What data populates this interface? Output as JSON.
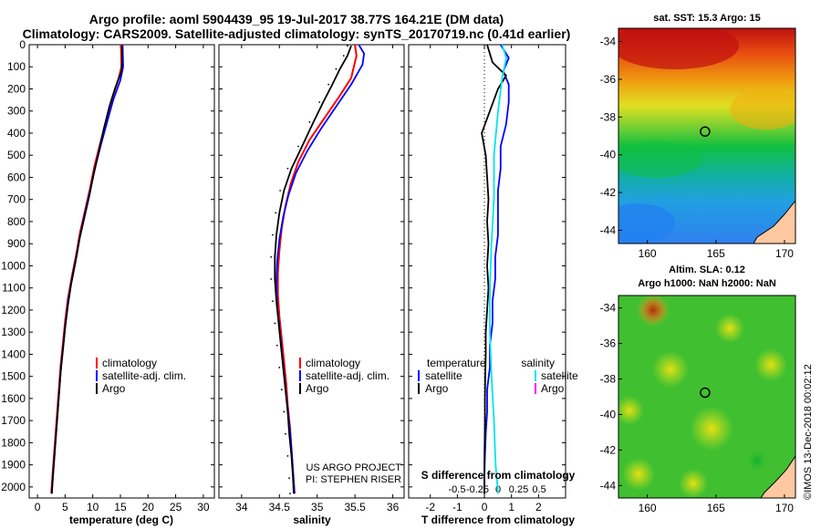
{
  "title_line1": "Argo profile: aoml 5904439_95 19-Jul-2017 38.77S 164.21E (DM data)",
  "title_line2": "Climatology: CARS2009. Satellite-adjusted climatology: synTS_20170719.nc (0.41d earlier)",
  "map1_title": "sat. SST: 15.3 Argo: 15",
  "map2_title_line1": "Altim. SLA: 0.12",
  "map2_title_line2": "Argo h1000: NaN h2000: NaN",
  "watermark": "©IMOS 13-Dec-2018 00:02:12",
  "credit_line1": "US ARGO PROJECT",
  "credit_line2": "PI: STEPHEN RISER",
  "colors": {
    "climatology": "#ff0000",
    "satellite": "#0000ff",
    "argo": "#000000",
    "s_satellite": "#00e5ee",
    "s_argo": "#ff00ff"
  },
  "chart_data": [
    {
      "type": "line",
      "name": "temperature-profile",
      "xlabel": "temperature (deg C)",
      "xlim": [
        -1.5,
        32
      ],
      "xticks": [
        0,
        5,
        10,
        15,
        20,
        25,
        30
      ],
      "ylim": [
        2050,
        0
      ],
      "yticks": [
        0,
        100,
        200,
        300,
        400,
        500,
        600,
        700,
        800,
        900,
        1000,
        1100,
        1200,
        1300,
        1400,
        1500,
        1600,
        1700,
        1800,
        1900,
        2000
      ],
      "legend": [
        "climatology",
        "satellite-adj. clim.",
        "Argo"
      ],
      "legend_position": "lower-right",
      "series": [
        {
          "name": "climatology",
          "points": [
            [
              15.1,
              0
            ],
            [
              15.2,
              100
            ],
            [
              14.7,
              150
            ],
            [
              13.4,
              250
            ],
            [
              12.4,
              350
            ],
            [
              11.3,
              450
            ],
            [
              10.3,
              550
            ],
            [
              9.5,
              650
            ],
            [
              8.6,
              750
            ],
            [
              7.7,
              850
            ],
            [
              7.0,
              950
            ],
            [
              6.2,
              1050
            ],
            [
              5.5,
              1150
            ],
            [
              5.0,
              1250
            ],
            [
              4.6,
              1350
            ],
            [
              4.2,
              1450
            ],
            [
              3.9,
              1550
            ],
            [
              3.6,
              1650
            ],
            [
              3.3,
              1750
            ],
            [
              3.0,
              1850
            ],
            [
              2.7,
              1950
            ],
            [
              2.5,
              2030
            ]
          ]
        },
        {
          "name": "satellite-adj. clim.",
          "points": [
            [
              15.4,
              0
            ],
            [
              15.5,
              100
            ],
            [
              15.0,
              160
            ],
            [
              13.7,
              250
            ],
            [
              12.6,
              350
            ],
            [
              11.5,
              450
            ],
            [
              10.5,
              550
            ],
            [
              9.6,
              650
            ],
            [
              8.7,
              750
            ],
            [
              7.8,
              850
            ],
            [
              7.1,
              950
            ],
            [
              6.3,
              1050
            ],
            [
              5.6,
              1150
            ],
            [
              5.1,
              1250
            ],
            [
              4.7,
              1350
            ],
            [
              4.3,
              1450
            ],
            [
              4.0,
              1550
            ],
            [
              3.7,
              1650
            ],
            [
              3.4,
              1750
            ],
            [
              3.1,
              1850
            ],
            [
              2.8,
              1950
            ],
            [
              2.6,
              2030
            ]
          ]
        },
        {
          "name": "Argo",
          "points": [
            [
              15.3,
              5
            ],
            [
              15.3,
              60
            ],
            [
              15.2,
              120
            ],
            [
              14.0,
              200
            ],
            [
              13.0,
              280
            ],
            [
              12.0,
              380
            ],
            [
              11.1,
              480
            ],
            [
              10.2,
              580
            ],
            [
              9.4,
              680
            ],
            [
              8.5,
              780
            ],
            [
              7.6,
              880
            ],
            [
              6.9,
              980
            ],
            [
              6.1,
              1080
            ],
            [
              5.5,
              1180
            ],
            [
              5.0,
              1280
            ],
            [
              4.6,
              1380
            ],
            [
              4.2,
              1480
            ],
            [
              3.9,
              1580
            ],
            [
              3.6,
              1680
            ],
            [
              3.3,
              1780
            ],
            [
              3.0,
              1880
            ],
            [
              2.7,
              1980
            ],
            [
              2.6,
              2030
            ]
          ]
        }
      ]
    },
    {
      "type": "line",
      "name": "salinity-profile",
      "xlabel": "salinity",
      "xlim": [
        33.7,
        36.15
      ],
      "xticks": [
        34,
        34.5,
        35,
        35.5,
        36
      ],
      "ylim": [
        2050,
        0
      ],
      "legend": [
        "climatology",
        "satellite-adj. clim.",
        "Argo"
      ],
      "legend_position": "lower-right",
      "series": [
        {
          "name": "climatology",
          "points": [
            [
              35.5,
              0
            ],
            [
              35.52,
              50
            ],
            [
              35.45,
              150
            ],
            [
              35.3,
              230
            ],
            [
              35.1,
              330
            ],
            [
              34.9,
              430
            ],
            [
              34.75,
              530
            ],
            [
              34.65,
              630
            ],
            [
              34.58,
              730
            ],
            [
              34.53,
              830
            ],
            [
              34.5,
              930
            ],
            [
              34.48,
              1030
            ],
            [
              34.48,
              1130
            ],
            [
              34.5,
              1230
            ],
            [
              34.53,
              1330
            ],
            [
              34.56,
              1430
            ],
            [
              34.59,
              1530
            ],
            [
              34.61,
              1630
            ],
            [
              34.64,
              1730
            ],
            [
              34.66,
              1830
            ],
            [
              34.68,
              1930
            ],
            [
              34.7,
              2030
            ]
          ]
        },
        {
          "name": "satellite-adj. clim.",
          "points": [
            [
              35.55,
              0
            ],
            [
              35.62,
              40
            ],
            [
              35.6,
              90
            ],
            [
              35.45,
              180
            ],
            [
              35.25,
              280
            ],
            [
              35.05,
              380
            ],
            [
              34.87,
              480
            ],
            [
              34.72,
              580
            ],
            [
              34.62,
              680
            ],
            [
              34.55,
              780
            ],
            [
              34.5,
              880
            ],
            [
              34.47,
              980
            ],
            [
              34.46,
              1080
            ],
            [
              34.47,
              1180
            ],
            [
              34.5,
              1280
            ],
            [
              34.53,
              1380
            ],
            [
              34.56,
              1480
            ],
            [
              34.59,
              1580
            ],
            [
              34.62,
              1680
            ],
            [
              34.65,
              1780
            ],
            [
              34.67,
              1880
            ],
            [
              34.69,
              1980
            ],
            [
              34.7,
              2030
            ]
          ]
        },
        {
          "name": "Argo",
          "points": [
            [
              35.45,
              5
            ],
            [
              35.4,
              50
            ],
            [
              35.3,
              110
            ],
            [
              35.2,
              180
            ],
            [
              35.08,
              260
            ],
            [
              34.95,
              350
            ],
            [
              34.8,
              460
            ],
            [
              34.66,
              560
            ],
            [
              34.56,
              660
            ],
            [
              34.5,
              760
            ],
            [
              34.46,
              860
            ],
            [
              34.44,
              960
            ],
            [
              34.44,
              1060
            ],
            [
              34.46,
              1160
            ],
            [
              34.49,
              1260
            ],
            [
              34.52,
              1360
            ],
            [
              34.55,
              1460
            ],
            [
              34.58,
              1560
            ],
            [
              34.61,
              1660
            ],
            [
              34.63,
              1760
            ],
            [
              34.66,
              1860
            ],
            [
              34.68,
              1960
            ],
            [
              34.69,
              2030
            ]
          ]
        }
      ]
    },
    {
      "type": "line",
      "name": "difference-profile",
      "xlabel": "T difference from climatology",
      "xlabel2": "S difference from climatology",
      "xlim": [
        -2.8,
        3.0
      ],
      "xticks": [
        -2,
        -1,
        0,
        1,
        2
      ],
      "xticks_S": [
        -0.5,
        -0.25,
        0,
        0.25,
        0.5
      ],
      "xtick_labels_S": [
        "-0.5",
        "-0.25",
        "0",
        "0.25",
        "0.5"
      ],
      "ylim": [
        2050,
        0
      ],
      "legend_T_title": "temperature",
      "legend_S_title": "salinity",
      "legend_T": [
        "satellite",
        "Argo"
      ],
      "legend_S": [
        "satellite",
        "Argo"
      ],
      "series": [
        {
          "name": "T satellite",
          "points": [
            [
              0.6,
              0
            ],
            [
              0.9,
              60
            ],
            [
              0.7,
              120
            ],
            [
              0.9,
              180
            ],
            [
              0.9,
              260
            ],
            [
              0.8,
              360
            ],
            [
              0.6,
              460
            ],
            [
              0.6,
              560
            ],
            [
              0.5,
              660
            ],
            [
              0.5,
              760
            ],
            [
              0.5,
              860
            ],
            [
              0.4,
              960
            ],
            [
              0.4,
              1060
            ],
            [
              0.3,
              1160
            ],
            [
              0.3,
              1260
            ],
            [
              0.2,
              1360
            ],
            [
              0.2,
              1460
            ],
            [
              0.1,
              1560
            ],
            [
              0.1,
              1660
            ],
            [
              0.05,
              1760
            ],
            [
              0.02,
              1860
            ],
            [
              0.0,
              1960
            ],
            [
              0.0,
              2030
            ]
          ]
        },
        {
          "name": "T Argo",
          "points": [
            [
              0.1,
              0
            ],
            [
              0.3,
              80
            ],
            [
              0.8,
              140
            ],
            [
              0.5,
              200
            ],
            [
              0.2,
              300
            ],
            [
              -0.1,
              400
            ],
            [
              0.05,
              500
            ],
            [
              0.1,
              600
            ],
            [
              0.15,
              700
            ],
            [
              0.1,
              800
            ],
            [
              0.15,
              900
            ],
            [
              0.1,
              1000
            ],
            [
              0.15,
              1100
            ],
            [
              0.1,
              1200
            ],
            [
              0.05,
              1300
            ],
            [
              0.05,
              1400
            ],
            [
              0.03,
              1500
            ],
            [
              0.02,
              1600
            ],
            [
              0.02,
              1700
            ],
            [
              0.01,
              1800
            ],
            [
              0.0,
              1900
            ],
            [
              0.0,
              2030
            ]
          ]
        },
        {
          "name": "S satellite",
          "points": [
            [
              0.05,
              0
            ],
            [
              0.1,
              60
            ],
            [
              0.05,
              150
            ],
            [
              0.0,
              300
            ],
            [
              -0.05,
              500
            ],
            [
              -0.05,
              700
            ],
            [
              -0.08,
              900
            ],
            [
              -0.1,
              1100
            ],
            [
              -0.1,
              1300
            ],
            [
              -0.08,
              1500
            ],
            [
              -0.05,
              1700
            ],
            [
              -0.03,
              1900
            ],
            [
              0.0,
              2030
            ]
          ]
        }
      ]
    }
  ],
  "map1": {
    "xticks": [
      160,
      165,
      170
    ],
    "yticks": [
      -34,
      -36,
      -38,
      -40,
      -42,
      -44
    ],
    "xlim": [
      157.9,
      170.8
    ],
    "ylim": [
      -44.7,
      -33.3
    ],
    "float_position": [
      164.21,
      -38.77
    ]
  },
  "map2": {
    "xticks": [
      160,
      165,
      170
    ],
    "yticks": [
      -34,
      -36,
      -38,
      -40,
      -42,
      -44
    ],
    "xlim": [
      157.9,
      170.8
    ],
    "ylim": [
      -44.7,
      -33.3
    ],
    "float_position": [
      164.21,
      -38.77
    ]
  }
}
